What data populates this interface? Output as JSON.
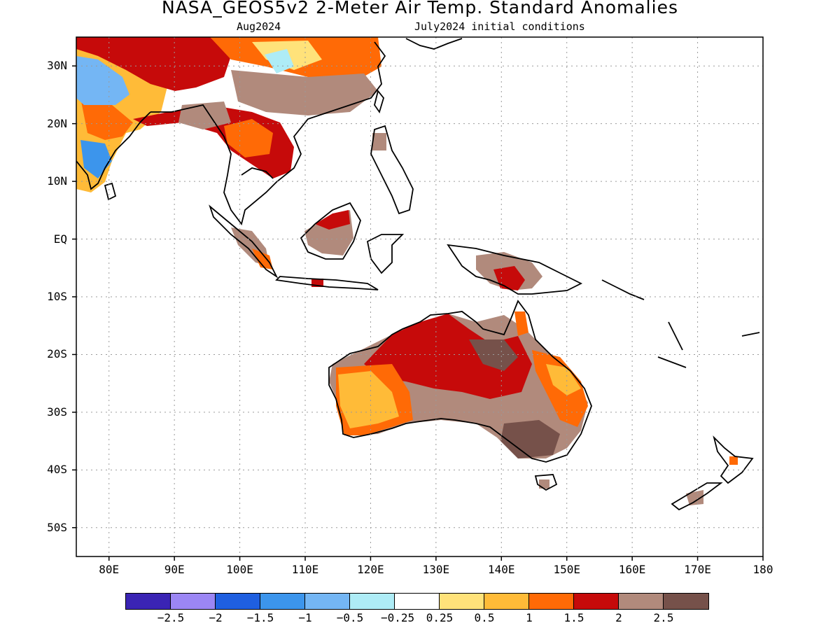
{
  "title": "NASA_GEOS5v2 2-Meter Air Temp. Standard Anomalies",
  "subtitle_left": "Aug2024",
  "subtitle_right": "July2024 initial conditions",
  "axes": {
    "lon_labels": [
      "80E",
      "90E",
      "100E",
      "110E",
      "120E",
      "130E",
      "140E",
      "150E",
      "160E",
      "170E",
      "180"
    ],
    "lat_labels": [
      "30N",
      "20N",
      "10N",
      "EQ",
      "10S",
      "20S",
      "30S",
      "40S",
      "50S"
    ],
    "lon_range": [
      75,
      180
    ],
    "lat_range": [
      -55,
      35
    ],
    "grid": true
  },
  "colorbar": {
    "labels": [
      "-2.5",
      "-2",
      "-1.5",
      "-1",
      "-0.5",
      "-0.25",
      "0.25",
      "0.5",
      "1",
      "1.5",
      "2",
      "2.5"
    ],
    "colors": [
      "#3a24b4",
      "#9b86f4",
      "#1f5fe0",
      "#3c95ec",
      "#74b6f4",
      "#aeecf6",
      "#ffffff",
      "#ffe27a",
      "#ffbb38",
      "#ff6a06",
      "#c60a0a",
      "#b18a7c",
      "#76514a"
    ]
  },
  "regions": [
    {
      "name": "Australia interior",
      "anomaly_class": "2.5"
    },
    {
      "name": "Southeast Asia",
      "anomaly_class": "2"
    },
    {
      "name": "India west",
      "anomaly_class": "-1"
    }
  ]
}
